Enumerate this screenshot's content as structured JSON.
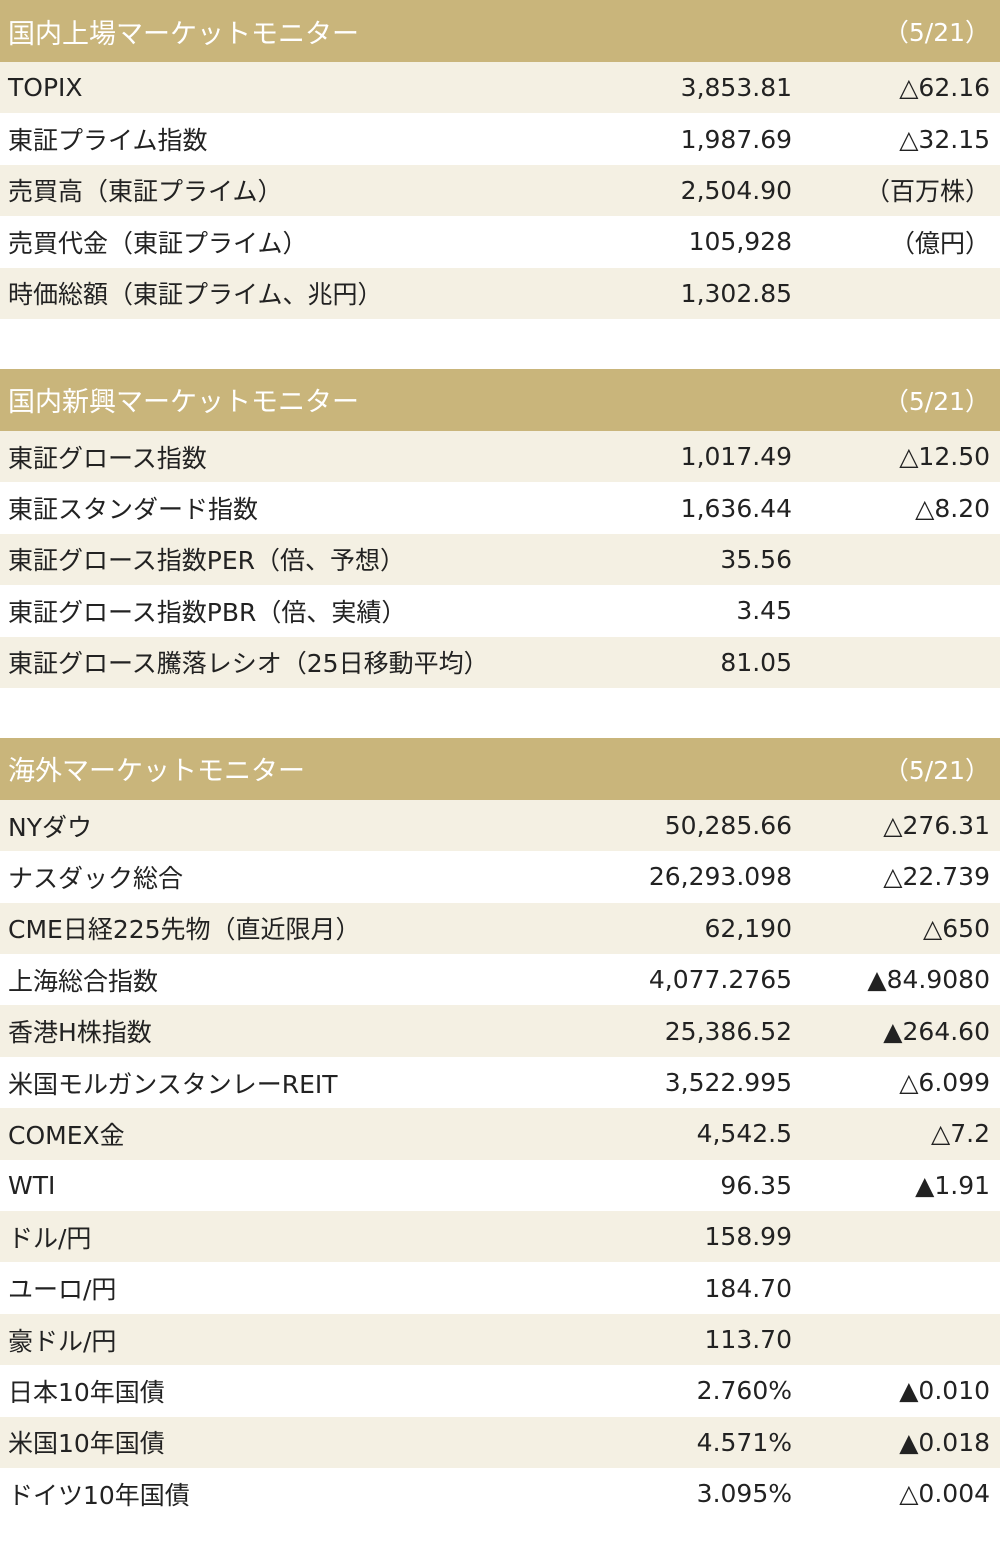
{
  "sections": [
    {
      "title": "国内上場マーケットモニター",
      "date": "（5/21）",
      "rows": [
        {
          "label": "TOPIX",
          "value": "3,853.81",
          "change": "△62.16"
        },
        {
          "label": "東証プライム指数",
          "value": "1,987.69",
          "change": "△32.15"
        },
        {
          "label": "売買高（東証プライム）",
          "value": "2,504.90",
          "change": "（百万株）"
        },
        {
          "label": "売買代金（東証プライム）",
          "value": "105,928",
          "change": "（億円）"
        },
        {
          "label": "時価総額（東証プライム、兆円）",
          "value": "1,302.85"
        }
      ]
    },
    {
      "title": "国内新興マーケットモニター",
      "date": "（5/21）",
      "rows": [
        {
          "label": "東証グロース指数",
          "value": "1,017.49",
          "change": "△12.50"
        },
        {
          "label": "東証スタンダード指数",
          "value": "1,636.44",
          "change": "△8.20"
        },
        {
          "label": "東証グロース指数PER（倍、予想）",
          "value": "35.56"
        },
        {
          "label": "東証グロース指数PBR（倍、実績）",
          "value": "3.45"
        },
        {
          "label": "東証グロース騰落レシオ（25日移動平均）",
          "value": "81.05"
        }
      ]
    },
    {
      "title": "海外マーケットモニター",
      "date": "（5/21）",
      "rows": [
        {
          "label": "NYダウ",
          "value": "50,285.66",
          "change": "△276.31"
        },
        {
          "label": "ナスダック総合",
          "value": "26,293.098",
          "change": "△22.739"
        },
        {
          "label": "CME日経225先物（直近限月）",
          "value": "62,190",
          "change": "△650"
        },
        {
          "label": "上海総合指数",
          "value": "4,077.2765",
          "change": "▲84.9080"
        },
        {
          "label": "香港H株指数",
          "value": "25,386.52",
          "change": "▲264.60"
        },
        {
          "label": "米国モルガンスタンレーREIT",
          "value": "3,522.995",
          "change": "△6.099"
        },
        {
          "label": "COMEX金",
          "value": "4,542.5",
          "change": "△7.2"
        },
        {
          "label": "WTI",
          "value": "96.35",
          "change": "▲1.91"
        },
        {
          "label": "ドル/円",
          "value": "158.99"
        },
        {
          "label": "ユーロ/円",
          "value": "184.70"
        },
        {
          "label": "豪ドル/円",
          "value": "113.70"
        },
        {
          "label": "日本10年国債",
          "value": "2.760%",
          "change": "▲0.010"
        },
        {
          "label": "米国10年国債",
          "value": "4.571%",
          "change": "▲0.018"
        },
        {
          "label": "ドイツ10年国債",
          "value": "3.095%",
          "change": "△0.004"
        }
      ]
    }
  ]
}
